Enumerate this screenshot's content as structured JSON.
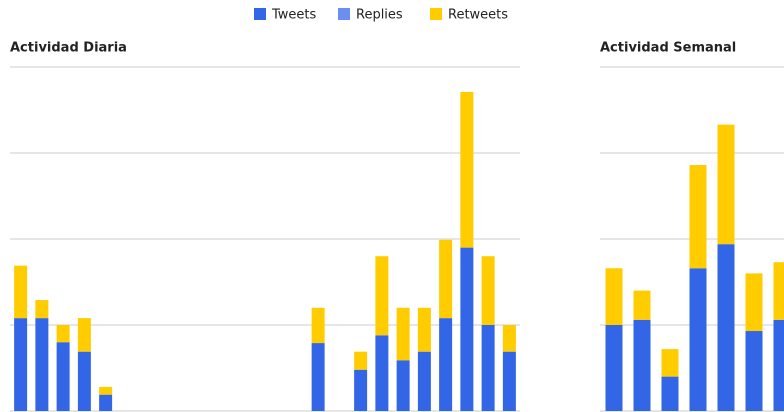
{
  "chart_data": [
    {
      "type": "bar",
      "stacked": true,
      "title": "Actividad Diaria",
      "categories": [
        null,
        null,
        null,
        null,
        null,
        null,
        null,
        null,
        null,
        null,
        null,
        null,
        null,
        null,
        null,
        null,
        null,
        null,
        null,
        null,
        null,
        null,
        null,
        null
      ],
      "series": [
        {
          "name": "Tweets",
          "color": "#3366e6",
          "values": [
            1.08,
            1.08,
            0.8,
            0.69,
            0.19,
            0,
            0,
            0,
            0,
            0,
            0,
            0,
            0,
            0,
            0.79,
            0,
            0.48,
            0.88,
            0.59,
            0.69,
            1.08,
            1.9,
            1.0,
            0.69
          ]
        },
        {
          "name": "Replies",
          "color": "#6b8ff0",
          "values": [
            0,
            0,
            0,
            0,
            0,
            0,
            0,
            0,
            0,
            0,
            0,
            0,
            0,
            0,
            0,
            0,
            0,
            0,
            0,
            0,
            0,
            0,
            0,
            0
          ]
        },
        {
          "name": "Retweets",
          "color": "#ffcc00",
          "values": [
            0.61,
            0.21,
            0.2,
            0.39,
            0.09,
            0,
            0,
            0,
            0,
            0,
            0,
            0,
            0,
            0,
            0.41,
            0,
            0.21,
            0.92,
            0.61,
            0.51,
            0.91,
            1.81,
            0.8,
            0.31
          ]
        }
      ],
      "ylim": [
        0,
        4
      ],
      "yticks": [
        0,
        1,
        2,
        3,
        4
      ],
      "grid": true,
      "legend": "top"
    },
    {
      "type": "bar",
      "stacked": true,
      "title": "Actividad Semanal",
      "categories": [
        null,
        null,
        null,
        null,
        null,
        null,
        null
      ],
      "series": [
        {
          "name": "Tweets",
          "color": "#3366e6",
          "values": [
            1.0,
            1.06,
            0.4,
            1.66,
            1.94,
            0.93,
            1.06
          ]
        },
        {
          "name": "Replies",
          "color": "#6b8ff0",
          "values": [
            0,
            0,
            0,
            0,
            0,
            0,
            0
          ]
        },
        {
          "name": "Retweets",
          "color": "#ffcc00",
          "values": [
            0.66,
            0.34,
            0.32,
            1.2,
            1.39,
            0.67,
            0.67
          ]
        }
      ],
      "ylim": [
        0,
        4
      ],
      "yticks": [
        0,
        1,
        2,
        3,
        4
      ],
      "grid": true
    }
  ]
}
